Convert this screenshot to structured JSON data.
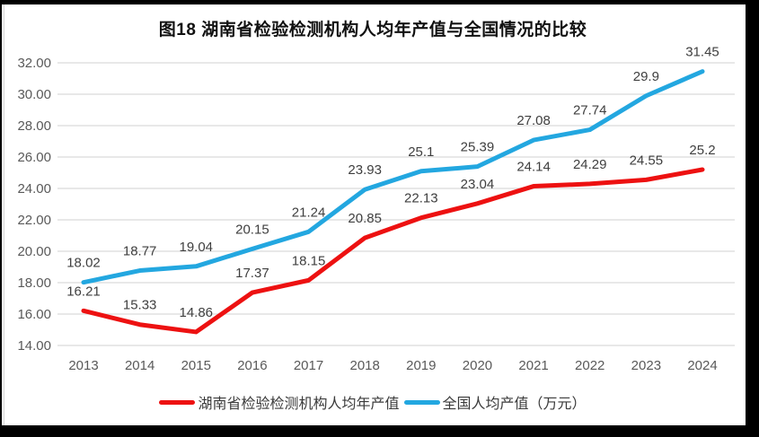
{
  "chart_data": {
    "type": "line",
    "title": "图18 湖南省检验检测机构人均年产值与全国情况的比较",
    "categories": [
      "2013",
      "2014",
      "2015",
      "2016",
      "2017",
      "2018",
      "2019",
      "2020",
      "2021",
      "2022",
      "2023",
      "2024"
    ],
    "series": [
      {
        "name": "湖南省检验检测机构人均年产值",
        "color": "#ed1111",
        "values": [
          16.21,
          15.33,
          14.86,
          17.37,
          18.15,
          20.85,
          22.13,
          23.04,
          24.14,
          24.29,
          24.55,
          25.2
        ],
        "labels": [
          "16.21",
          "15.33",
          "14.86",
          "17.37",
          "18.15",
          "20.85",
          "22.13",
          "23.04",
          "24.14",
          "24.29",
          "24.55",
          "25.2"
        ]
      },
      {
        "name": "全国人均产值（万元）",
        "color": "#23a7e0",
        "values": [
          18.02,
          18.77,
          19.04,
          20.15,
          21.24,
          23.93,
          25.1,
          25.39,
          27.08,
          27.74,
          29.9,
          31.45
        ],
        "labels": [
          "18.02",
          "18.77",
          "19.04",
          "20.15",
          "21.24",
          "23.93",
          "25.1",
          "25.39",
          "27.08",
          "27.74",
          "29.9",
          "31.45"
        ]
      }
    ],
    "y_ticks": [
      "32.00",
      "30.00",
      "28.00",
      "26.00",
      "24.00",
      "22.00",
      "20.00",
      "18.00",
      "16.00",
      "14.00"
    ],
    "ylim": [
      14,
      32
    ],
    "xlabel": "",
    "ylabel": "",
    "grid": "horizontal",
    "legend_position": "bottom",
    "colors": {
      "gridline": "#d9d9d9",
      "tick_text": "#595959",
      "data_label_text": "#3f3f3f",
      "frame": "#000000"
    }
  }
}
